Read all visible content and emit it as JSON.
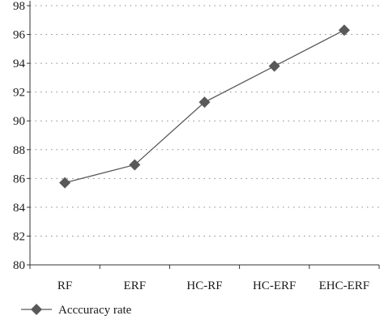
{
  "chart_data": {
    "type": "line",
    "categories": [
      "RF",
      "ERF",
      "HC-RF",
      "HC-ERF",
      "EHC-ERF"
    ],
    "series": [
      {
        "name": "Acccuracy rate",
        "values": [
          85.7,
          86.95,
          91.3,
          93.8,
          96.3
        ]
      }
    ],
    "title": "",
    "xlabel": "",
    "ylabel": "",
    "ylim": [
      80,
      98
    ],
    "yticks": [
      80,
      82,
      84,
      86,
      88,
      90,
      92,
      94,
      96,
      98
    ],
    "grid": "horizontal-dotted",
    "legend_position": "bottom-left",
    "colors": {
      "line": "#595959",
      "marker": "#595959",
      "axis": "#333333",
      "grid": "#8a8a8a"
    },
    "marker": "diamond"
  }
}
